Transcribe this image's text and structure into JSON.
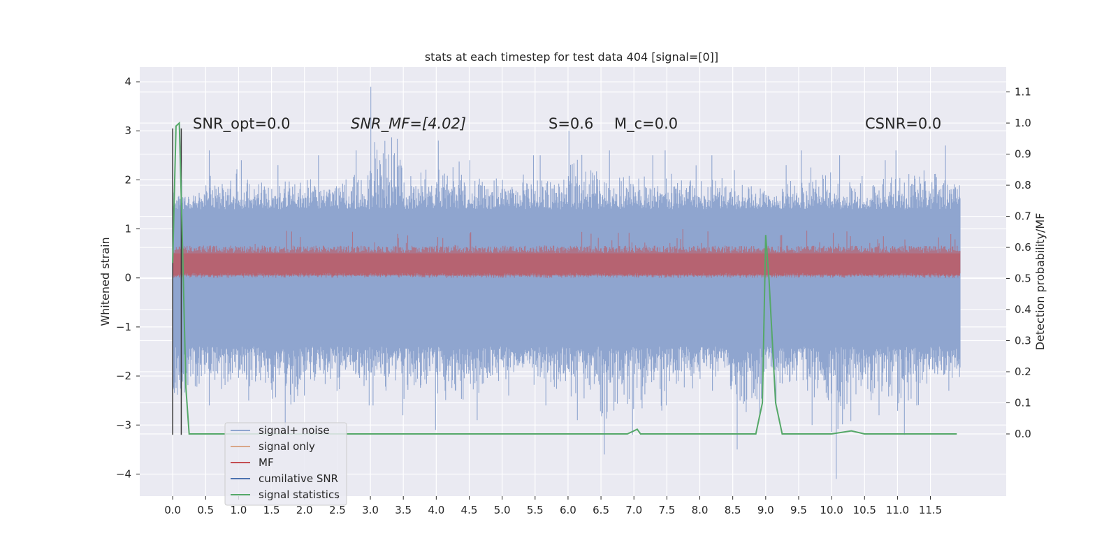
{
  "chart_data": {
    "type": "line",
    "title": "stats at each timestep for test data 404 [signal=[0]]",
    "ylabel_left": "Whitened strain",
    "ylabel_right": "Detection probability/MF",
    "xlim": [
      -0.5,
      12.65
    ],
    "ylim_left": [
      -4.45,
      4.3
    ],
    "ylim_right": [
      -0.2,
      1.18
    ],
    "x_ticks": [
      0.0,
      0.5,
      1.0,
      1.5,
      2.0,
      2.5,
      3.0,
      3.5,
      4.0,
      4.5,
      5.0,
      5.5,
      6.0,
      6.5,
      7.0,
      7.5,
      8.0,
      8.5,
      9.0,
      9.5,
      10.0,
      10.5,
      11.0,
      11.5
    ],
    "x_tick_labels": [
      "0.0",
      "0.5",
      "1.0",
      "1.5",
      "2.0",
      "2.5",
      "3.0",
      "3.5",
      "4.0",
      "4.5",
      "5.0",
      "5.5",
      "6.0",
      "6.5",
      "7.0",
      "7.5",
      "8.0",
      "8.5",
      "9.0",
      "9.5",
      "10.0",
      "10.5",
      "11.0",
      "11.5"
    ],
    "y_left_ticks": [
      -4,
      -3,
      -2,
      -1,
      0,
      1,
      2,
      3,
      4
    ],
    "y_left_tick_labels": [
      "−4",
      "−3",
      "−2",
      "−1",
      "0",
      "1",
      "2",
      "3",
      "4"
    ],
    "y_right_ticks": [
      0.0,
      0.1,
      0.2,
      0.3,
      0.4,
      0.5,
      0.6,
      0.7,
      0.8,
      0.9,
      1.0,
      1.1
    ],
    "y_right_tick_labels": [
      "0.0",
      "0.1",
      "0.2",
      "0.3",
      "0.4",
      "0.5",
      "0.6",
      "0.7",
      "0.8",
      "0.9",
      "1.0",
      "1.1"
    ],
    "grid": true,
    "legend_position": "lower-left",
    "annotations": [
      {
        "text": "SNR_opt=0.0",
        "x": 0.2,
        "y": 3.0
      },
      {
        "text": "SNR_MF=[4.02]",
        "x": 2.6,
        "y": 3.0
      },
      {
        "text": "S=0.6",
        "x": 5.6,
        "y": 3.0
      },
      {
        "text": "M_c=0.0",
        "x": 6.6,
        "y": 3.0
      },
      {
        "text": "CSNR=0.0",
        "x": 10.4,
        "y": 3.0
      }
    ],
    "vertical_lines": [
      {
        "x": 0.0,
        "y_range": [
          -3.2,
          3.05
        ]
      },
      {
        "x": 0.13,
        "y_range": [
          -3.2,
          3.05
        ]
      }
    ],
    "series": [
      {
        "name": "signal+ noise",
        "color": "#8fa5cf",
        "axis": "left",
        "t_start": 0.0,
        "t_end": 11.95,
        "envelope_upper": [
          2.0,
          2.6,
          2.4,
          2.3,
          2.5,
          2.6,
          3.9,
          2.7,
          2.8,
          2.4,
          2.5,
          2.5,
          3.0,
          2.6,
          2.5,
          2.6,
          2.5,
          2.2,
          2.3,
          2.6,
          2.5,
          2.4,
          2.6,
          2.7
        ],
        "envelope_lower": [
          -2.8,
          -2.6,
          -2.5,
          -3.1,
          -2.4,
          -2.6,
          -2.6,
          -2.8,
          -3.1,
          -2.9,
          -2.4,
          -2.6,
          -2.9,
          -3.6,
          -3.2,
          -2.6,
          -2.3,
          -3.5,
          -2.6,
          -3.0,
          -4.1,
          -2.8,
          -3.2,
          -2.3
        ],
        "typical_range": [
          -1.4,
          1.4
        ]
      },
      {
        "name": "signal only",
        "color": "#d9a688",
        "axis": "left",
        "values_constant": 0.0
      },
      {
        "name": "MF",
        "color": "#c44e52",
        "axis": "left",
        "t_start": 0.0,
        "t_end": 11.95,
        "typical_range": [
          0.0,
          0.6
        ],
        "max": 1.0
      },
      {
        "name": "cumilative SNR",
        "color": "#4c72b0",
        "axis": "left",
        "values_constant": 0.0
      },
      {
        "name": "signal statistics",
        "color": "#55a868",
        "axis": "right",
        "x": [
          0.0,
          0.05,
          0.1,
          0.15,
          0.2,
          0.25,
          0.3,
          1.0,
          2.0,
          3.0,
          4.0,
          5.0,
          5.7,
          6.0,
          6.9,
          7.0,
          7.05,
          7.1,
          7.2,
          8.0,
          8.85,
          8.95,
          9.0,
          9.05,
          9.15,
          9.25,
          9.4,
          9.6,
          10.0,
          10.3,
          10.5,
          11.0,
          11.5,
          11.9
        ],
        "y": [
          0.55,
          0.99,
          1.0,
          0.6,
          0.15,
          0.0,
          0.0,
          0.0,
          0.0,
          0.0,
          0.0,
          0.0,
          0.0,
          0.0,
          0.0,
          0.01,
          0.015,
          0.0,
          0.0,
          0.0,
          0.0,
          0.1,
          0.64,
          0.5,
          0.1,
          0.0,
          0.0,
          0.0,
          0.0,
          0.01,
          0.0,
          0.0,
          0.0,
          0.0
        ]
      }
    ]
  },
  "colors": {
    "plot_background": "#eaeaf2",
    "grid": "#ffffff",
    "noise_fill": "#8fa5cf",
    "mf_fill": "#c44e52",
    "stats_line": "#55a868",
    "vline": "#3a3a3a"
  }
}
